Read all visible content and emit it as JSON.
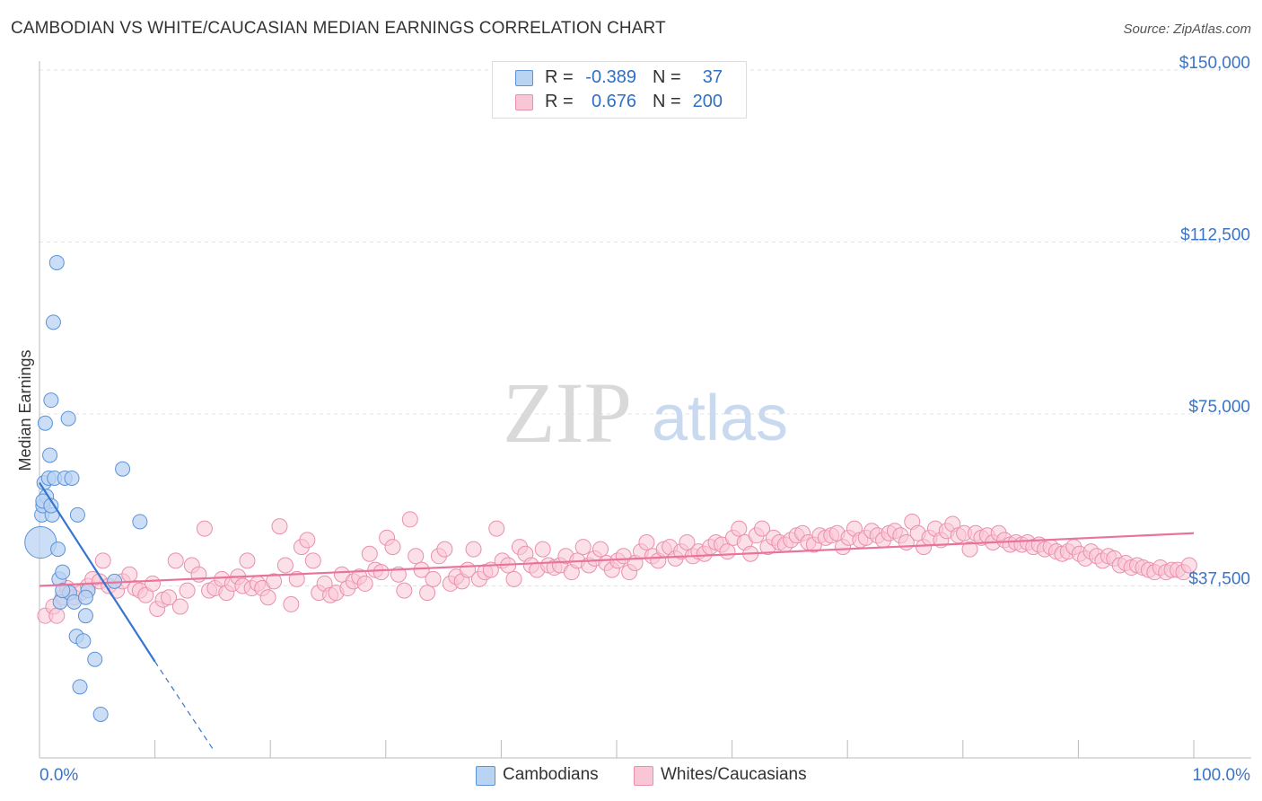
{
  "title": "CAMBODIAN VS WHITE/CAUCASIAN MEDIAN EARNINGS CORRELATION CHART",
  "source": "Source: ZipAtlas.com",
  "watermark": {
    "zip": "ZIP",
    "atlas": "atlas"
  },
  "legend": {
    "rows": [
      {
        "r_label": "R =",
        "r_value": "-0.389",
        "n_label": "N =",
        "n_value": "37"
      },
      {
        "r_label": "R =",
        "r_value": "0.676",
        "n_label": "N =",
        "n_value": "200"
      }
    ]
  },
  "bottom_legend": [
    "Cambodians",
    "Whites/Caucasians"
  ],
  "colors": {
    "blue_fill": "#b9d3f3",
    "blue_stroke": "#5b93d8",
    "blue_line": "#3575cf",
    "pink_fill": "#f9c6d6",
    "pink_stroke": "#ea8fae",
    "pink_line": "#e8739b",
    "axis_label": "#3a74c8",
    "grid": "#e3e3e3"
  },
  "chart_data": {
    "type": "scatter",
    "title": "CAMBODIAN VS WHITE/CAUCASIAN MEDIAN EARNINGS CORRELATION CHART",
    "ylabel": "Median Earnings",
    "xlabel": "",
    "xlim": [
      0,
      100
    ],
    "ylim": [
      0,
      155000
    ],
    "x_tick_labels": [
      "0.0%",
      "100.0%"
    ],
    "y_ticks": [
      37500,
      75000,
      112500,
      150000
    ],
    "y_tick_labels": [
      "$37,500",
      "$75,000",
      "$112,500",
      "$150,000"
    ],
    "series": [
      {
        "name": "Cambodians",
        "r": -0.389,
        "n": 37,
        "trend": {
          "x0": 0,
          "y0": 60000,
          "x1": 10,
          "y1": 21000,
          "dash_to_x": 15,
          "dash_to_y": 2000
        },
        "points": [
          [
            0.1,
            47000,
            2.2
          ],
          [
            0.2,
            53000,
            1
          ],
          [
            0.3,
            55000,
            1
          ],
          [
            0.4,
            60000,
            1
          ],
          [
            0.5,
            73000,
            1
          ],
          [
            0.6,
            57000,
            1
          ],
          [
            0.8,
            61000,
            1
          ],
          [
            0.9,
            66000,
            1
          ],
          [
            1.0,
            78000,
            1
          ],
          [
            1.1,
            53000,
            1
          ],
          [
            1.2,
            95000,
            1
          ],
          [
            1.3,
            61000,
            1
          ],
          [
            1.5,
            108000,
            1
          ],
          [
            1.6,
            45500,
            1
          ],
          [
            1.7,
            39000,
            1
          ],
          [
            1.8,
            34000,
            1
          ],
          [
            2.0,
            40500,
            1
          ],
          [
            2.2,
            61000,
            1
          ],
          [
            2.5,
            74000,
            1
          ],
          [
            2.6,
            36000,
            1
          ],
          [
            2.8,
            61000,
            1
          ],
          [
            3.0,
            34000,
            1
          ],
          [
            3.2,
            26500,
            1
          ],
          [
            3.3,
            53000,
            1
          ],
          [
            3.5,
            15500,
            1
          ],
          [
            3.8,
            25500,
            1
          ],
          [
            4.0,
            31000,
            1
          ],
          [
            4.2,
            36500,
            1
          ],
          [
            4.8,
            21500,
            1
          ],
          [
            5.3,
            9500,
            1
          ],
          [
            6.5,
            38500,
            1
          ],
          [
            7.2,
            63000,
            1
          ],
          [
            8.7,
            51500,
            1
          ],
          [
            0.3,
            56000,
            1
          ],
          [
            1.0,
            55000,
            1
          ],
          [
            2.0,
            36500,
            1
          ],
          [
            4.0,
            35000,
            1
          ]
        ]
      },
      {
        "name": "Whites/Caucasians",
        "r": 0.676,
        "n": 200,
        "trend": {
          "x0": 0,
          "y0": 37500,
          "x1": 100,
          "y1": 49000
        },
        "points": [
          [
            0.5,
            31000
          ],
          [
            1.2,
            33000
          ],
          [
            1.5,
            31000
          ],
          [
            2.0,
            35000
          ],
          [
            2.4,
            37000
          ],
          [
            3.0,
            35000
          ],
          [
            3.6,
            36000
          ],
          [
            4.2,
            37500
          ],
          [
            4.6,
            39000
          ],
          [
            5.2,
            38500
          ],
          [
            5.5,
            43000
          ],
          [
            6.0,
            37500
          ],
          [
            6.7,
            36500
          ],
          [
            7.2,
            38500
          ],
          [
            7.8,
            40000
          ],
          [
            8.3,
            37000
          ],
          [
            8.7,
            36500
          ],
          [
            9.2,
            35500
          ],
          [
            9.8,
            38000
          ],
          [
            10.2,
            32500
          ],
          [
            10.7,
            34500
          ],
          [
            11.2,
            35000
          ],
          [
            11.8,
            43000
          ],
          [
            12.2,
            33000
          ],
          [
            12.8,
            36500
          ],
          [
            13.2,
            42000
          ],
          [
            13.8,
            40000
          ],
          [
            14.3,
            50000
          ],
          [
            14.7,
            36500
          ],
          [
            15.2,
            37000
          ],
          [
            15.8,
            39000
          ],
          [
            16.2,
            36000
          ],
          [
            16.7,
            38000
          ],
          [
            17.2,
            39500
          ],
          [
            17.6,
            37500
          ],
          [
            18.0,
            43000
          ],
          [
            18.4,
            37000
          ],
          [
            18.9,
            38000
          ],
          [
            19.3,
            37000
          ],
          [
            19.8,
            35000
          ],
          [
            20.3,
            38500
          ],
          [
            20.8,
            50500
          ],
          [
            21.3,
            42000
          ],
          [
            21.8,
            33500
          ],
          [
            22.3,
            39000
          ],
          [
            22.7,
            46000
          ],
          [
            23.2,
            47500
          ],
          [
            23.7,
            43000
          ],
          [
            24.2,
            36000
          ],
          [
            24.7,
            38000
          ],
          [
            25.2,
            35500
          ],
          [
            25.7,
            36000
          ],
          [
            26.2,
            40000
          ],
          [
            26.7,
            37000
          ],
          [
            27.2,
            38500
          ],
          [
            27.7,
            39500
          ],
          [
            28.2,
            38000
          ],
          [
            28.6,
            44500
          ],
          [
            29.1,
            41000
          ],
          [
            29.6,
            40500
          ],
          [
            30.1,
            48000
          ],
          [
            30.6,
            46000
          ],
          [
            31.1,
            40000
          ],
          [
            31.6,
            36500
          ],
          [
            32.1,
            52000
          ],
          [
            32.6,
            44000
          ],
          [
            33.1,
            41000
          ],
          [
            33.6,
            36000
          ],
          [
            34.1,
            39000
          ],
          [
            34.6,
            44000
          ],
          [
            35.1,
            45500
          ],
          [
            35.6,
            38000
          ],
          [
            36.1,
            39500
          ],
          [
            36.6,
            38500
          ],
          [
            37.1,
            41000
          ],
          [
            37.6,
            45500
          ],
          [
            38.1,
            39000
          ],
          [
            38.6,
            40500
          ],
          [
            39.1,
            41000
          ],
          [
            39.6,
            50000
          ],
          [
            40.1,
            43000
          ],
          [
            40.6,
            42000
          ],
          [
            41.1,
            39000
          ],
          [
            41.6,
            46000
          ],
          [
            42.1,
            44500
          ],
          [
            42.6,
            42000
          ],
          [
            43.1,
            41000
          ],
          [
            43.6,
            45500
          ],
          [
            44.1,
            42000
          ],
          [
            44.6,
            41500
          ],
          [
            45.1,
            42000
          ],
          [
            45.6,
            44000
          ],
          [
            46.1,
            40500
          ],
          [
            46.6,
            43000
          ],
          [
            47.1,
            46000
          ],
          [
            47.6,
            42000
          ],
          [
            48.1,
            43500
          ],
          [
            48.6,
            45500
          ],
          [
            49.1,
            42500
          ],
          [
            49.6,
            41000
          ],
          [
            50.1,
            43000
          ],
          [
            50.6,
            44000
          ],
          [
            51.1,
            40500
          ],
          [
            51.6,
            42500
          ],
          [
            52.1,
            45000
          ],
          [
            52.6,
            47000
          ],
          [
            53.1,
            44000
          ],
          [
            53.6,
            43000
          ],
          [
            54.1,
            45500
          ],
          [
            54.6,
            46000
          ],
          [
            55.1,
            43500
          ],
          [
            55.6,
            45000
          ],
          [
            56.1,
            47000
          ],
          [
            56.6,
            44000
          ],
          [
            57.1,
            45000
          ],
          [
            57.6,
            44500
          ],
          [
            58.1,
            46000
          ],
          [
            58.6,
            47000
          ],
          [
            59.1,
            46500
          ],
          [
            59.6,
            45000
          ],
          [
            60.1,
            48000
          ],
          [
            60.6,
            50000
          ],
          [
            61.1,
            47000
          ],
          [
            61.6,
            44500
          ],
          [
            62.1,
            48500
          ],
          [
            62.6,
            50000
          ],
          [
            63.1,
            46000
          ],
          [
            63.6,
            48000
          ],
          [
            64.1,
            47000
          ],
          [
            64.6,
            46500
          ],
          [
            65.1,
            47500
          ],
          [
            65.6,
            48500
          ],
          [
            66.1,
            49000
          ],
          [
            66.6,
            47000
          ],
          [
            67.1,
            46500
          ],
          [
            67.6,
            48500
          ],
          [
            68.1,
            48000
          ],
          [
            68.6,
            48500
          ],
          [
            69.1,
            49000
          ],
          [
            69.6,
            46000
          ],
          [
            70.1,
            48000
          ],
          [
            70.6,
            50000
          ],
          [
            71.1,
            47500
          ],
          [
            71.6,
            48000
          ],
          [
            72.1,
            49500
          ],
          [
            72.6,
            48500
          ],
          [
            73.1,
            47500
          ],
          [
            73.6,
            49000
          ],
          [
            74.1,
            49500
          ],
          [
            74.6,
            48500
          ],
          [
            75.1,
            47000
          ],
          [
            75.6,
            51500
          ],
          [
            76.1,
            49000
          ],
          [
            76.6,
            46000
          ],
          [
            77.1,
            48000
          ],
          [
            77.6,
            50000
          ],
          [
            78.1,
            47500
          ],
          [
            78.6,
            49500
          ],
          [
            79.1,
            51000
          ],
          [
            79.6,
            48500
          ],
          [
            80.1,
            49000
          ],
          [
            80.6,
            45500
          ],
          [
            81.1,
            49000
          ],
          [
            81.6,
            48000
          ],
          [
            82.1,
            48500
          ],
          [
            82.6,
            47000
          ],
          [
            83.1,
            49000
          ],
          [
            83.6,
            47500
          ],
          [
            84.1,
            46500
          ],
          [
            84.6,
            47000
          ],
          [
            85.1,
            46500
          ],
          [
            85.6,
            47000
          ],
          [
            86.1,
            46000
          ],
          [
            86.6,
            46500
          ],
          [
            87.1,
            45500
          ],
          [
            87.6,
            46000
          ],
          [
            88.1,
            45000
          ],
          [
            88.6,
            44500
          ],
          [
            89.1,
            45000
          ],
          [
            89.6,
            46000
          ],
          [
            90.1,
            44500
          ],
          [
            90.6,
            43500
          ],
          [
            91.1,
            45000
          ],
          [
            91.6,
            44000
          ],
          [
            92.1,
            43000
          ],
          [
            92.6,
            44000
          ],
          [
            93.1,
            43500
          ],
          [
            93.6,
            42000
          ],
          [
            94.1,
            42500
          ],
          [
            94.6,
            41500
          ],
          [
            95.1,
            42000
          ],
          [
            95.6,
            41500
          ],
          [
            96.1,
            41000
          ],
          [
            96.6,
            40500
          ],
          [
            97.1,
            41500
          ],
          [
            97.6,
            40500
          ],
          [
            98.1,
            41000
          ],
          [
            98.6,
            41000
          ],
          [
            99.1,
            40500
          ],
          [
            99.6,
            42000
          ]
        ]
      }
    ]
  }
}
